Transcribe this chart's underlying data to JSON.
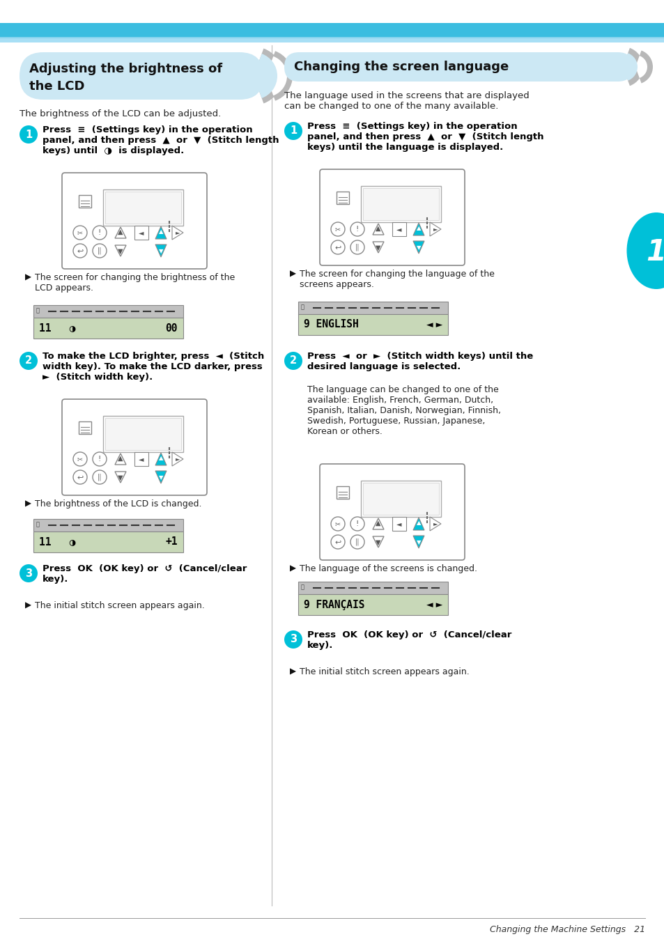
{
  "page_bg": "#ffffff",
  "header_color1": "#3bbde0",
  "header_color2": "#a8dff5",
  "left_title": "Adjusting the brightness of\nthe LCD",
  "left_title_bg": "#cce8f4",
  "right_title": "Changing the screen language",
  "right_title_bg": "#cce8f4",
  "left_intro": "The brightness of the LCD can be adjusted.",
  "right_intro": "The language used in the screens that are displayed\ncan be changed to one of the many available.",
  "cyan_color": "#00c0d8",
  "gray_chevron": "#b0b0b0",
  "divider_color": "#cccccc",
  "footer_text": "Changing the Machine Settings   21",
  "side_num": "1"
}
